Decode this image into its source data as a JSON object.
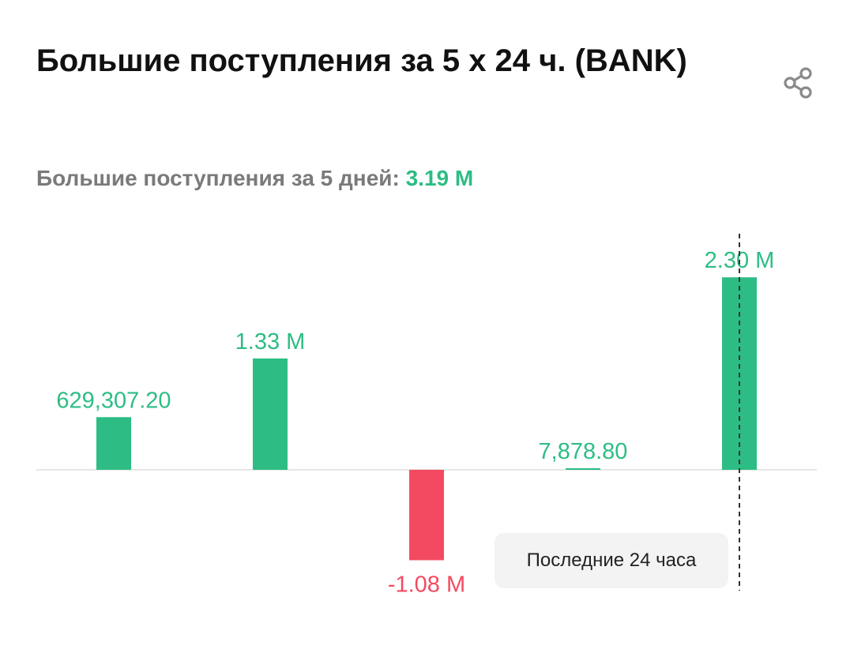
{
  "header": {
    "title": "Большие поступления за 5 x 24 ч. (BANK)",
    "share_icon": "share-icon"
  },
  "summary": {
    "label": "Большие поступления за 5 дней:",
    "value": "3.19 M"
  },
  "tooltip": {
    "label": "Последние 24 часа"
  },
  "colors": {
    "positive": "#2dbd84",
    "negative": "#f44a61",
    "baseline": "#e6e6e6",
    "marker": "#333333"
  },
  "chart_data": {
    "type": "bar",
    "categories": [
      "",
      "",
      "",
      "",
      ""
    ],
    "values": [
      629307.2,
      1330000,
      -1080000,
      7878.8,
      2300000
    ],
    "data_labels": [
      "629,307.20",
      "1.33 M",
      "-1.08 M",
      "7,878.80",
      "2.30 M"
    ],
    "title": "",
    "xlabel": "",
    "ylabel": "",
    "ylim": [
      -1400000,
      2700000
    ],
    "grid": false,
    "legend": "none",
    "marker_line": "Последние 24 часа"
  }
}
